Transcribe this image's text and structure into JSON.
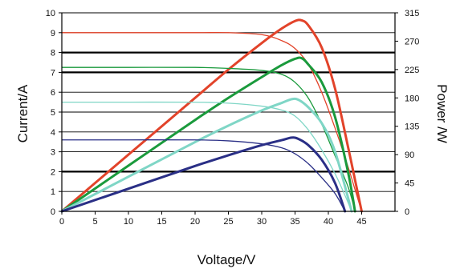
{
  "chart_data": {
    "type": "line",
    "xlabel": "Voltage/V",
    "ylabel": "Current/A",
    "y2label": "Power /W",
    "xlim": [
      0,
      50
    ],
    "ylim": [
      0,
      10
    ],
    "y2lim": [
      0,
      315
    ],
    "xticks": [
      "0",
      "5",
      "10",
      "15",
      "20",
      "25",
      "30",
      "35",
      "40",
      "45"
    ],
    "yticks": [
      "0",
      "1",
      "2",
      "3",
      "4",
      "5",
      "6",
      "7",
      "8",
      "9",
      "10"
    ],
    "y2ticks": [
      "0",
      "45",
      "90",
      "135",
      "180",
      "225",
      "270",
      "315"
    ],
    "grid": "horizontal",
    "bold_gridlines_y": [
      2,
      7,
      8
    ],
    "series": [
      {
        "color": "#e2432a",
        "iv": [
          [
            0,
            9.0
          ],
          [
            10,
            9.0
          ],
          [
            20,
            9.0
          ],
          [
            25,
            9.0
          ],
          [
            30,
            8.9
          ],
          [
            33,
            8.6
          ],
          [
            35,
            8.2
          ],
          [
            37,
            7.4
          ],
          [
            39,
            6.0
          ],
          [
            41,
            4.2
          ],
          [
            43,
            2.2
          ],
          [
            44,
            1.1
          ],
          [
            45,
            0
          ]
        ],
        "pv": [
          [
            0,
            0
          ],
          [
            10,
            90
          ],
          [
            20,
            180
          ],
          [
            25,
            225
          ],
          [
            30,
            267
          ],
          [
            33,
            290
          ],
          [
            35,
            302
          ],
          [
            36,
            303
          ],
          [
            37,
            295
          ],
          [
            39,
            260
          ],
          [
            41,
            195
          ],
          [
            43,
            100
          ],
          [
            44,
            50
          ],
          [
            45,
            0
          ]
        ]
      },
      {
        "color": "#1a9a3c",
        "iv": [
          [
            0,
            7.25
          ],
          [
            10,
            7.25
          ],
          [
            20,
            7.25
          ],
          [
            25,
            7.2
          ],
          [
            30,
            7.1
          ],
          [
            33,
            6.9
          ],
          [
            35,
            6.5
          ],
          [
            37,
            5.7
          ],
          [
            39,
            4.4
          ],
          [
            41,
            2.8
          ],
          [
            43,
            1.2
          ],
          [
            44,
            0
          ]
        ],
        "pv": [
          [
            0,
            0
          ],
          [
            10,
            72.5
          ],
          [
            20,
            145
          ],
          [
            25,
            180
          ],
          [
            30,
            213
          ],
          [
            33,
            232
          ],
          [
            35,
            242
          ],
          [
            36,
            243
          ],
          [
            37,
            233
          ],
          [
            39,
            205
          ],
          [
            41,
            150
          ],
          [
            43,
            60
          ],
          [
            44,
            0
          ]
        ]
      },
      {
        "color": "#7fd6c6",
        "iv": [
          [
            0,
            5.5
          ],
          [
            10,
            5.5
          ],
          [
            20,
            5.5
          ],
          [
            25,
            5.45
          ],
          [
            30,
            5.3
          ],
          [
            33,
            5.1
          ],
          [
            35,
            4.8
          ],
          [
            37,
            4.1
          ],
          [
            39,
            3.1
          ],
          [
            41,
            1.9
          ],
          [
            42.5,
            0.8
          ],
          [
            43.5,
            0
          ]
        ],
        "pv": [
          [
            0,
            0
          ],
          [
            10,
            55
          ],
          [
            20,
            110
          ],
          [
            25,
            136
          ],
          [
            30,
            160
          ],
          [
            33,
            172
          ],
          [
            34.5,
            178
          ],
          [
            35.5,
            177
          ],
          [
            37,
            165
          ],
          [
            39,
            140
          ],
          [
            41,
            95
          ],
          [
            43.5,
            0
          ]
        ]
      },
      {
        "color": "#2a2f86",
        "iv": [
          [
            0,
            3.6
          ],
          [
            10,
            3.6
          ],
          [
            20,
            3.6
          ],
          [
            25,
            3.55
          ],
          [
            30,
            3.4
          ],
          [
            33,
            3.2
          ],
          [
            35,
            2.9
          ],
          [
            37,
            2.4
          ],
          [
            39,
            1.7
          ],
          [
            41,
            0.9
          ],
          [
            42.5,
            0
          ]
        ],
        "pv": [
          [
            0,
            0
          ],
          [
            10,
            36
          ],
          [
            20,
            72
          ],
          [
            25,
            89
          ],
          [
            30,
            105
          ],
          [
            33,
            113
          ],
          [
            34.5,
            117
          ],
          [
            35.5,
            115
          ],
          [
            37,
            105
          ],
          [
            39,
            82
          ],
          [
            41,
            45
          ],
          [
            42.5,
            0
          ]
        ]
      }
    ]
  }
}
